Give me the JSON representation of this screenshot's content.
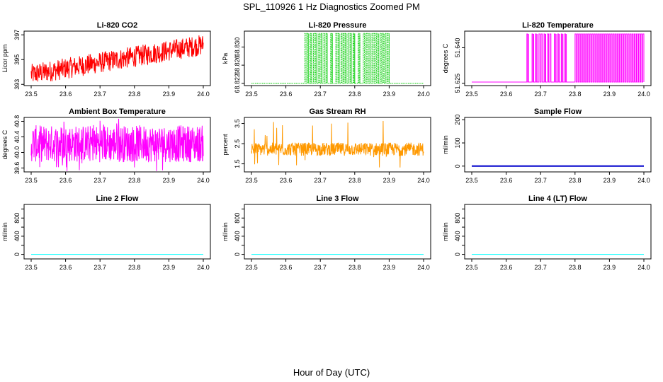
{
  "main_title": "SPL_110926  1 Hz Diagnostics Zoomed PM",
  "xlabel": "Hour of Day (UTC)",
  "chart_data": [
    {
      "type": "line",
      "title": "Li-820 CO2",
      "ylabel": "Licor ppm",
      "color": "#ff0000",
      "xlim": [
        23.5,
        24.0
      ],
      "ylim": [
        392.9,
        397.3
      ],
      "xticks": [
        "23.5",
        "23.6",
        "23.7",
        "23.8",
        "23.9",
        "24.0"
      ],
      "yticks": [
        "393",
        "395",
        "397"
      ],
      "ytick_values": [
        393,
        395,
        397
      ],
      "series": [
        {
          "name": "CO2",
          "pattern": "noisy",
          "start": 393.8,
          "end": 396.2,
          "amp": 0.85
        }
      ]
    },
    {
      "type": "line",
      "title": "Li-820 Pressure",
      "ylabel": "kPa",
      "color": "#00cc00",
      "xlim": [
        23.5,
        24.0
      ],
      "ylim": [
        68.8215,
        68.8335
      ],
      "xticks": [
        "23.5",
        "23.6",
        "23.7",
        "23.8",
        "23.9",
        "24.0"
      ],
      "yticks": [
        "68.822",
        "68.826",
        "68.830"
      ],
      "ytick_values": [
        68.822,
        68.826,
        68.83
      ],
      "series": [
        {
          "name": "Pressure",
          "pattern": "step",
          "low": 68.822,
          "high": 68.833,
          "high_intervals": [
            [
              23.655,
              23.665
            ],
            [
              23.67,
              23.675
            ],
            [
              23.68,
              23.69
            ],
            [
              23.695,
              23.705
            ],
            [
              23.71,
              23.72
            ],
            [
              23.73,
              23.735
            ],
            [
              23.745,
              23.755
            ],
            [
              23.76,
              23.775
            ],
            [
              23.78,
              23.79
            ],
            [
              23.795,
              23.8
            ],
            [
              23.81,
              23.815
            ],
            [
              23.825,
              23.845
            ],
            [
              23.85,
              23.87
            ],
            [
              23.875,
              23.9
            ]
          ]
        }
      ]
    },
    {
      "type": "line",
      "title": "Li-820 Temperature",
      "ylabel": "degrees C",
      "color": "#ff00ff",
      "xlim": [
        23.5,
        24.0
      ],
      "ylim": [
        51.624,
        51.647
      ],
      "xticks": [
        "23.5",
        "23.6",
        "23.7",
        "23.8",
        "23.9",
        "24.0"
      ],
      "yticks": [
        "51.625",
        "51.640"
      ],
      "ytick_values": [
        51.625,
        51.64
      ],
      "series": [
        {
          "name": "Temperature",
          "pattern": "step",
          "low": 51.6255,
          "high": 51.6458,
          "high_intervals": [
            [
              23.66,
              23.665
            ],
            [
              23.675,
              23.68
            ],
            [
              23.685,
              23.69
            ],
            [
              23.695,
              23.705
            ],
            [
              23.71,
              23.715
            ],
            [
              23.72,
              23.73
            ],
            [
              23.74,
              23.745
            ],
            [
              23.75,
              23.755
            ],
            [
              23.76,
              23.765
            ],
            [
              23.77,
              23.775
            ],
            [
              23.8,
              24.0
            ]
          ]
        }
      ]
    },
    {
      "type": "line",
      "title": "Ambient Box Temperature",
      "ylabel": "degrees C",
      "color": "#ff00ff",
      "xlim": [
        23.5,
        24.0
      ],
      "ylim": [
        39.5,
        40.9
      ],
      "xticks": [
        "23.5",
        "23.6",
        "23.7",
        "23.8",
        "23.9",
        "24.0"
      ],
      "yticks": [
        "39.6",
        "40.0",
        "40.4",
        "40.8"
      ],
      "ytick_values": [
        39.6,
        40.0,
        40.4,
        40.8
      ],
      "series": [
        {
          "name": "Ambient",
          "pattern": "band",
          "low": 39.75,
          "high": 40.7
        }
      ]
    },
    {
      "type": "line",
      "title": "Gas Stream RH",
      "ylabel": "percent",
      "color": "#ff9900",
      "xlim": [
        23.5,
        24.0
      ],
      "ylim": [
        1.1,
        3.8
      ],
      "xticks": [
        "23.5",
        "23.6",
        "23.7",
        "23.8",
        "23.9",
        "24.0"
      ],
      "yticks": [
        "1.5",
        "2.5",
        "3.5"
      ],
      "ytick_values": [
        1.5,
        2.5,
        3.5
      ],
      "series": [
        {
          "name": "RH",
          "pattern": "band",
          "low": 1.9,
          "high": 2.55
        }
      ]
    },
    {
      "type": "line",
      "title": "Sample Flow",
      "ylabel": "ml/min",
      "color": "#0000cc",
      "xlim": [
        23.5,
        24.0
      ],
      "ylim": [
        -25,
        210
      ],
      "xticks": [
        "23.5",
        "23.6",
        "23.7",
        "23.8",
        "23.9",
        "24.0"
      ],
      "yticks": [
        "0",
        "100",
        "200"
      ],
      "ytick_values": [
        0,
        100,
        200
      ],
      "series": [
        {
          "name": "Sample Flow",
          "pattern": "flat",
          "value": 0
        }
      ]
    },
    {
      "type": "line",
      "title": "Line 2 Flow",
      "ylabel": "ml/min",
      "color": "#00ffff",
      "xlim": [
        23.5,
        24.0
      ],
      "ylim": [
        -100,
        1100
      ],
      "xticks": [
        "23.5",
        "23.6",
        "23.7",
        "23.8",
        "23.9",
        "24.0"
      ],
      "yticks": [
        "0",
        "200",
        "400",
        "600",
        "800",
        "1000"
      ],
      "ytick_values": [
        0,
        200,
        400,
        600,
        800,
        1000
      ],
      "ytick_show": [
        "0",
        "400",
        "800"
      ],
      "series": [
        {
          "name": "Line 2",
          "pattern": "flat",
          "value": 0
        }
      ]
    },
    {
      "type": "line",
      "title": "Line 3 Flow",
      "ylabel": "ml/min",
      "color": "#00ffff",
      "xlim": [
        23.5,
        24.0
      ],
      "ylim": [
        -100,
        1100
      ],
      "xticks": [
        "23.5",
        "23.6",
        "23.7",
        "23.8",
        "23.9",
        "24.0"
      ],
      "yticks": [
        "0",
        "200",
        "400",
        "600",
        "800",
        "1000"
      ],
      "ytick_values": [
        0,
        200,
        400,
        600,
        800,
        1000
      ],
      "ytick_show": [
        "0",
        "400",
        "800"
      ],
      "series": [
        {
          "name": "Line 3",
          "pattern": "flat",
          "value": 0
        }
      ]
    },
    {
      "type": "line",
      "title": "Line 4 (LT) Flow",
      "ylabel": "ml/min",
      "color": "#00ffff",
      "xlim": [
        23.5,
        24.0
      ],
      "ylim": [
        -100,
        1100
      ],
      "xticks": [
        "23.5",
        "23.6",
        "23.7",
        "23.8",
        "23.9",
        "24.0"
      ],
      "yticks": [
        "0",
        "200",
        "400",
        "600",
        "800",
        "1000"
      ],
      "ytick_values": [
        0,
        200,
        400,
        600,
        800,
        1000
      ],
      "ytick_show": [
        "0",
        "400",
        "800"
      ],
      "series": [
        {
          "name": "Line 4",
          "pattern": "flat",
          "value": 0
        }
      ]
    }
  ]
}
